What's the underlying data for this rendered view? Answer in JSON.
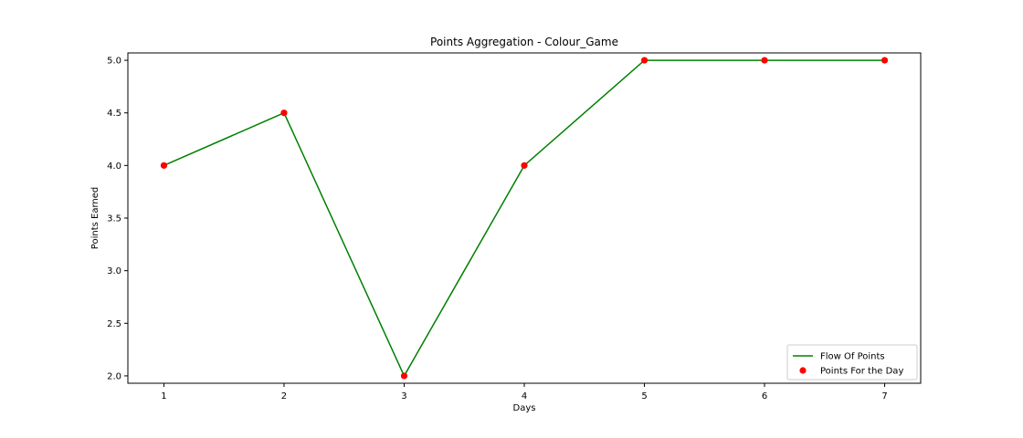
{
  "chart_data": {
    "type": "line",
    "title": "Points Aggregation - Colour_Game",
    "xlabel": "Days",
    "ylabel": "Points Earned",
    "x": [
      1,
      2,
      3,
      4,
      5,
      6,
      7
    ],
    "x_ticks": [
      "1",
      "2",
      "3",
      "4",
      "5",
      "6",
      "7"
    ],
    "y_ticks": [
      "2.0",
      "2.5",
      "3.0",
      "3.5",
      "4.0",
      "4.5",
      "5.0"
    ],
    "ylim": [
      1.93,
      5.07
    ],
    "xlim": [
      0.7,
      7.3
    ],
    "grid": false,
    "legend_position": "lower-right",
    "series": [
      {
        "name": "Flow Of Points",
        "style": "line",
        "color": "#008000",
        "values": [
          4.0,
          4.5,
          2.0,
          4.0,
          5.0,
          5.0,
          5.0
        ]
      },
      {
        "name": "Points For the Day",
        "style": "marker",
        "color": "#ff0000",
        "values": [
          4.0,
          4.5,
          2.0,
          4.0,
          5.0,
          5.0,
          5.0
        ]
      }
    ]
  }
}
